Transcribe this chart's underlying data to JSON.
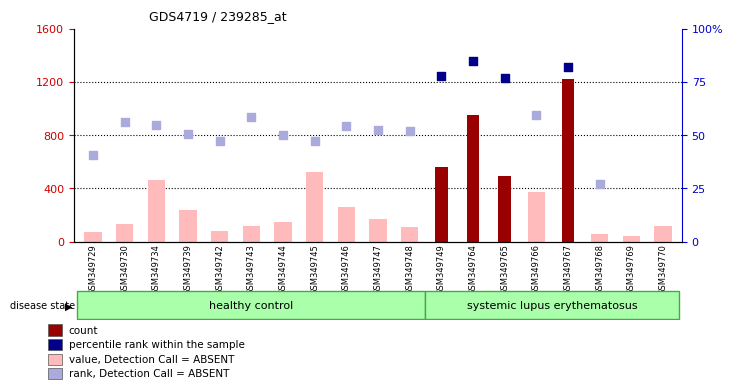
{
  "title": "GDS4719 / 239285_at",
  "samples": [
    "GSM349729",
    "GSM349730",
    "GSM349734",
    "GSM349739",
    "GSM349742",
    "GSM349743",
    "GSM349744",
    "GSM349745",
    "GSM349746",
    "GSM349747",
    "GSM349748",
    "GSM349749",
    "GSM349764",
    "GSM349765",
    "GSM349766",
    "GSM349767",
    "GSM349768",
    "GSM349769",
    "GSM349770"
  ],
  "n_healthy": 11,
  "count": [
    null,
    null,
    null,
    null,
    null,
    null,
    null,
    null,
    null,
    null,
    null,
    560,
    950,
    490,
    null,
    1220,
    null,
    null,
    null
  ],
  "percentile_rank": [
    null,
    null,
    null,
    null,
    null,
    null,
    null,
    null,
    null,
    null,
    null,
    78,
    85,
    77,
    null,
    82,
    null,
    null,
    null
  ],
  "value_absent": [
    70,
    130,
    460,
    240,
    80,
    120,
    150,
    520,
    260,
    170,
    110,
    null,
    null,
    null,
    370,
    null,
    55,
    40,
    120
  ],
  "rank_absent_left": [
    650,
    900,
    880,
    810,
    760,
    940,
    800,
    760,
    870,
    840,
    830,
    null,
    null,
    null,
    950,
    null,
    430,
    null,
    null
  ],
  "ylim_left": [
    0,
    1600
  ],
  "ylim_right": [
    0,
    100
  ],
  "yticks_left": [
    0,
    400,
    800,
    1200,
    1600
  ],
  "yticks_right": [
    0,
    25,
    50,
    75,
    100
  ],
  "ytick_right_labels": [
    "0",
    "25",
    "50",
    "75",
    "100%"
  ],
  "left_tick_color": "#cc0000",
  "right_tick_color": "#0000cc",
  "bar_color_count": "#990000",
  "bar_color_value_absent": "#ffbbbb",
  "scatter_color_rank": "#00008b",
  "scatter_color_rank_absent": "#aaaadd",
  "legend": [
    {
      "label": "count",
      "color": "#990000"
    },
    {
      "label": "percentile rank within the sample",
      "color": "#00008b"
    },
    {
      "label": "value, Detection Call = ABSENT",
      "color": "#ffbbbb"
    },
    {
      "label": "rank, Detection Call = ABSENT",
      "color": "#aaaadd"
    }
  ]
}
